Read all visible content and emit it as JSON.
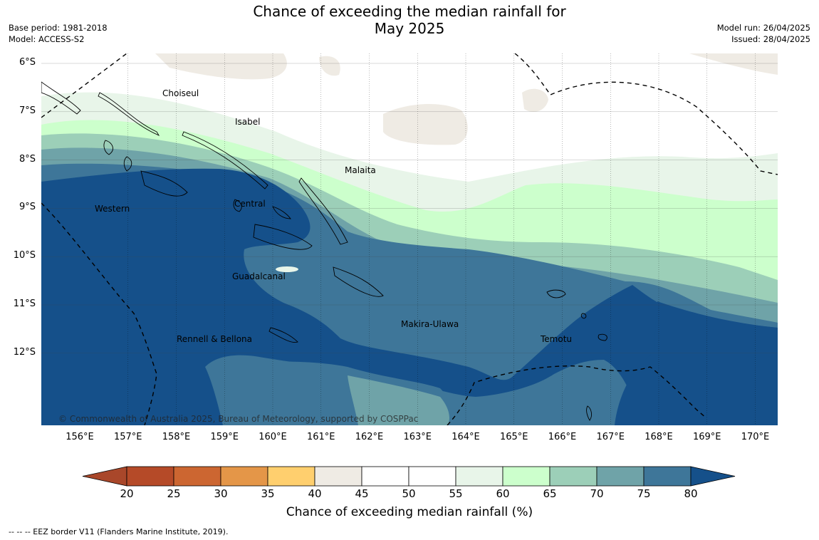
{
  "header": {
    "title_line1": "Chance of exceeding the median rainfall for",
    "title_line2": "May 2025",
    "base_period": "Base period: 1981-2018",
    "model": "Model: ACCESS-S2",
    "model_run": "Model run: 26/04/2025",
    "issued": "Issued: 28/04/2025"
  },
  "map": {
    "longitude_ticks": [
      "156°E",
      "157°E",
      "158°E",
      "159°E",
      "160°E",
      "161°E",
      "162°E",
      "163°E",
      "164°E",
      "165°E",
      "166°E",
      "167°E",
      "168°E",
      "169°E",
      "170°E"
    ],
    "latitude_ticks": [
      "6°S",
      "7°S",
      "8°S",
      "9°S",
      "10°S",
      "11°S",
      "12°S"
    ],
    "region_labels": [
      "Choiseul",
      "Isabel",
      "Malaita",
      "Western",
      "Central",
      "Guadalcanal",
      "Makira-Ulawa",
      "Rennell & Bellona",
      "Temotu"
    ],
    "copyright": "© Commonwealth of Australia 2025, Bureau of Meteorology, supported by COSPPac",
    "colors": {
      "lt45": "#efebe4",
      "45_55": "#ffffff",
      "55_60": "#e8f5e9",
      "60_65": "#ccffcc",
      "65_70": "#9ccfb8",
      "70_75": "#6fa3a8",
      "75_80": "#3e7699",
      "gt80": "#15508a"
    }
  },
  "colorbar": {
    "ticks": [
      "20",
      "25",
      "30",
      "35",
      "40",
      "45",
      "50",
      "55",
      "60",
      "65",
      "70",
      "75",
      "80"
    ],
    "colors": [
      "#a9472a",
      "#b54a28",
      "#cc6631",
      "#e49648",
      "#ffcf6e",
      "#efebe4",
      "#ffffff",
      "#ffffff",
      "#e8f5e9",
      "#ccffcc",
      "#9ccfb8",
      "#6fa3a8",
      "#3e7699",
      "#15508a"
    ],
    "label": "Chance of exceeding median rainfall (%)"
  },
  "footnote": "--  --  -- EEZ border V11 (Flanders Marine Institute, 2019)."
}
